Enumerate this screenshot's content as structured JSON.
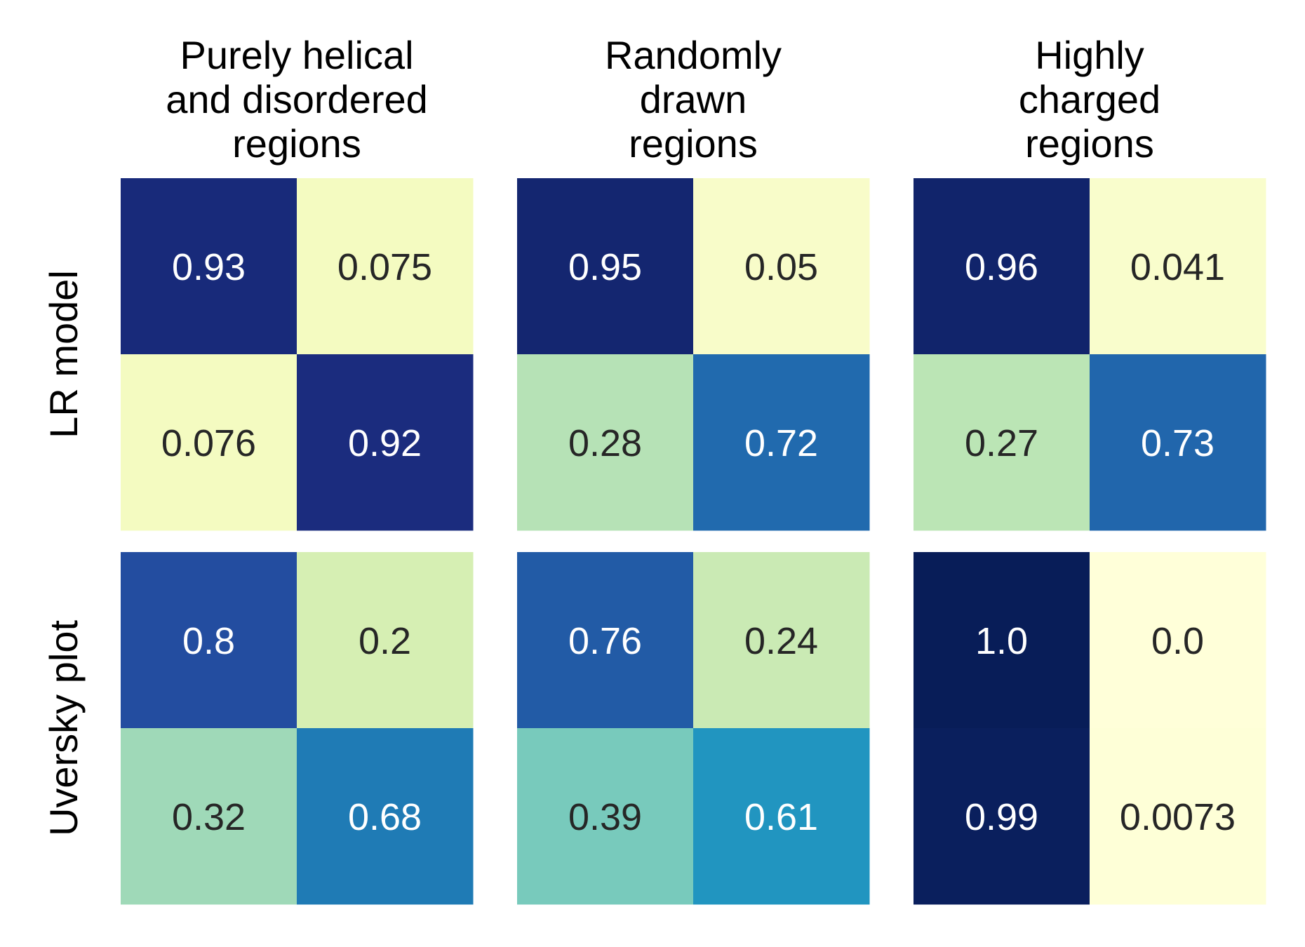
{
  "chart_data": {
    "type": "heatmap",
    "colormap": "YlGnBu",
    "value_range": [
      0,
      1
    ],
    "columns": [
      {
        "title_lines": [
          "Purely helical",
          "and disordered",
          "regions"
        ]
      },
      {
        "title_lines": [
          "Randomly",
          "drawn",
          "regions"
        ]
      },
      {
        "title_lines": [
          "Highly",
          "charged",
          "regions"
        ]
      }
    ],
    "rows": [
      {
        "label": "LR model"
      },
      {
        "label": "Uversky plot"
      }
    ],
    "panels": [
      [
        {
          "matrix": [
            [
              0.93,
              0.075
            ],
            [
              0.076,
              0.92
            ]
          ],
          "labels": [
            [
              "0.93",
              "0.075"
            ],
            [
              "0.076",
              "0.92"
            ]
          ]
        },
        {
          "matrix": [
            [
              0.95,
              0.05
            ],
            [
              0.28,
              0.72
            ]
          ],
          "labels": [
            [
              "0.95",
              "0.05"
            ],
            [
              "0.28",
              "0.72"
            ]
          ]
        },
        {
          "matrix": [
            [
              0.96,
              0.041
            ],
            [
              0.27,
              0.73
            ]
          ],
          "labels": [
            [
              "0.96",
              "0.041"
            ],
            [
              "0.27",
              "0.73"
            ]
          ]
        }
      ],
      [
        {
          "matrix": [
            [
              0.8,
              0.2
            ],
            [
              0.32,
              0.68
            ]
          ],
          "labels": [
            [
              "0.8",
              "0.2"
            ],
            [
              "0.32",
              "0.68"
            ]
          ]
        },
        {
          "matrix": [
            [
              0.76,
              0.24
            ],
            [
              0.39,
              0.61
            ]
          ],
          "labels": [
            [
              "0.76",
              "0.24"
            ],
            [
              "0.39",
              "0.61"
            ]
          ]
        },
        {
          "matrix": [
            [
              1.0,
              0.0
            ],
            [
              0.99,
              0.0073
            ]
          ],
          "labels": [
            [
              "1.0",
              "0.0"
            ],
            [
              "0.99",
              "0.0073"
            ]
          ]
        }
      ]
    ],
    "colors": {
      "text_dark": "#262626",
      "text_light": "#ffffff",
      "label": "#000000"
    }
  }
}
